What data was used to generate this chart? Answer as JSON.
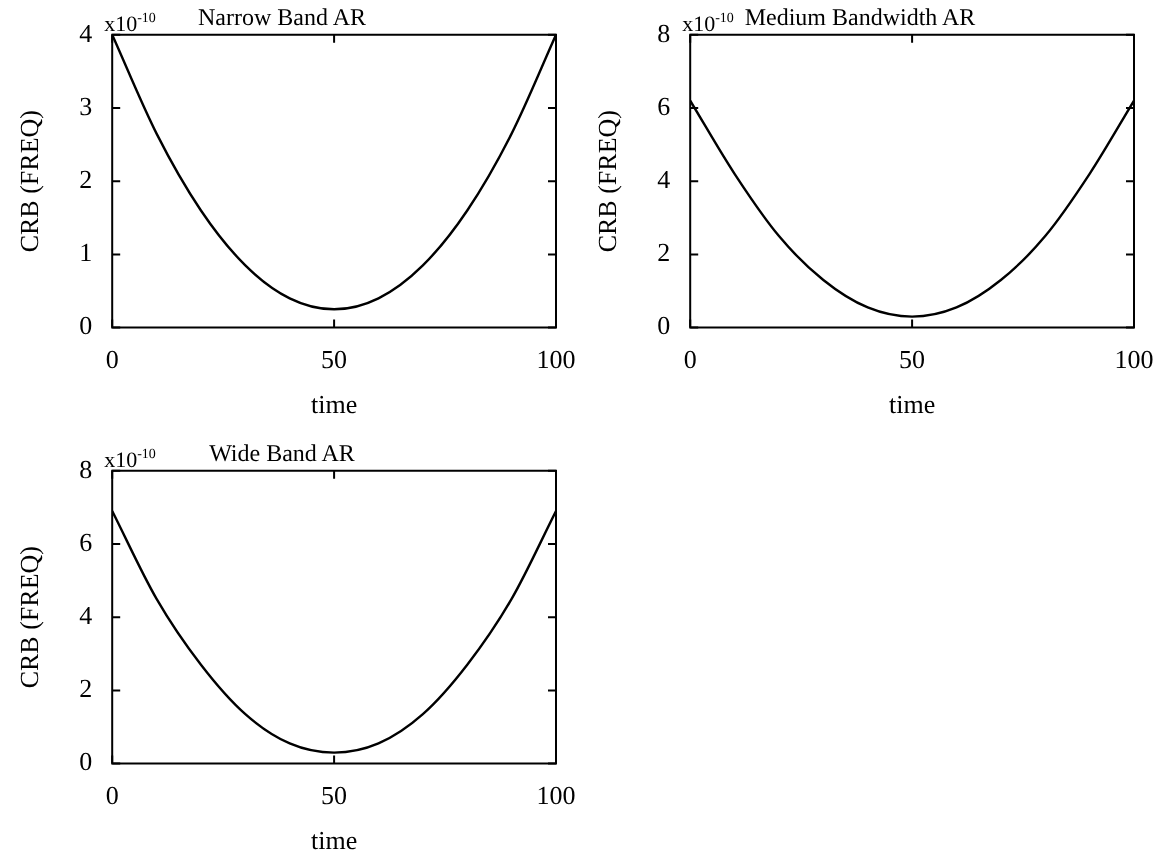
{
  "chart_data": [
    {
      "type": "line",
      "title": "Narrow Band AR",
      "xlabel": "time",
      "ylabel": "CRB (FREQ)",
      "annotations": [
        "x10$^{-10}$"
      ],
      "marker": "none",
      "line_style": "solid",
      "color": "#000000",
      "x": [
        0,
        10,
        20,
        30,
        40,
        50,
        60,
        70,
        80,
        90,
        100
      ],
      "values": [
        4.0,
        2.65,
        1.6,
        0.85,
        0.4,
        0.25,
        0.4,
        0.85,
        1.6,
        2.65,
        4.0
      ],
      "xlim": [
        0,
        100
      ],
      "xticks": [
        0,
        50,
        100
      ],
      "ylim": [
        0,
        4
      ],
      "yticks": [
        0,
        1,
        2,
        3,
        4
      ]
    },
    {
      "type": "line",
      "title": "Medium Bandwidth AR",
      "xlabel": "time",
      "ylabel": "CRB (FREQ)",
      "annotations": [
        "x10$^{-10}$"
      ],
      "marker": "none",
      "line_style": "solid",
      "color": "#000000",
      "x": [
        0,
        10,
        20,
        30,
        40,
        50,
        60,
        70,
        80,
        90,
        100
      ],
      "values": [
        6.2,
        4.2,
        2.5,
        1.3,
        0.55,
        0.3,
        0.55,
        1.3,
        2.5,
        4.2,
        6.2
      ],
      "xlim": [
        0,
        100
      ],
      "xticks": [
        0,
        50,
        100
      ],
      "ylim": [
        0,
        8
      ],
      "yticks": [
        0,
        2,
        4,
        6,
        8
      ]
    },
    {
      "type": "line",
      "title": "Wide Band AR",
      "xlabel": "time",
      "ylabel": "CRB (FREQ)",
      "annotations": [
        "x10$^{-10}$"
      ],
      "marker": "none",
      "line_style": "solid",
      "color": "#000000",
      "x": [
        0,
        10,
        20,
        30,
        40,
        50,
        60,
        70,
        80,
        90,
        100
      ],
      "values": [
        6.9,
        4.5,
        2.7,
        1.35,
        0.55,
        0.3,
        0.55,
        1.35,
        2.7,
        4.5,
        6.9
      ],
      "xlim": [
        0,
        100
      ],
      "xticks": [
        0,
        50,
        100
      ],
      "ylim": [
        0,
        8
      ],
      "yticks": [
        0,
        2,
        4,
        6,
        8
      ]
    }
  ]
}
